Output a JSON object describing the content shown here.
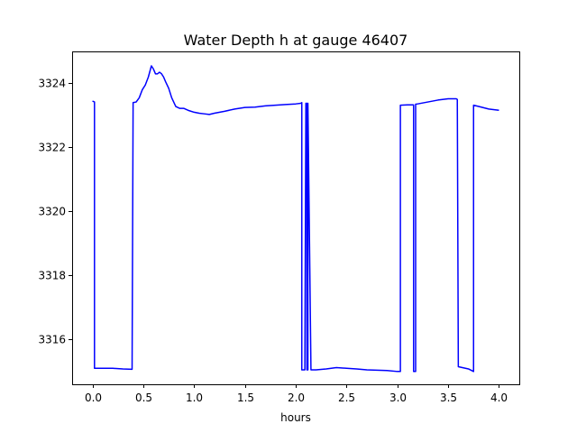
{
  "chart_data": {
    "type": "line",
    "title": "Water Depth h at gauge 46407",
    "xlabel": "hours",
    "ylabel": "",
    "xlim": [
      -0.2,
      4.2
    ],
    "ylim": [
      3314.6,
      3325.0
    ],
    "xticks": [
      0.0,
      0.5,
      1.0,
      1.5,
      2.0,
      2.5,
      3.0,
      3.5,
      4.0
    ],
    "xtick_labels": [
      "0.0",
      "0.5",
      "1.0",
      "1.5",
      "2.0",
      "2.5",
      "3.0",
      "3.5",
      "4.0"
    ],
    "yticks": [
      3316,
      3318,
      3320,
      3322,
      3324
    ],
    "ytick_labels": [
      "3316",
      "3318",
      "3320",
      "3322",
      "3324"
    ],
    "grid": false,
    "series": [
      {
        "color": "#0000ff",
        "x": [
          0.0,
          0.02,
          0.02,
          0.1,
          0.2,
          0.3,
          0.39,
          0.4,
          0.43,
          0.46,
          0.49,
          0.52,
          0.55,
          0.58,
          0.6,
          0.62,
          0.64,
          0.66,
          0.68,
          0.7,
          0.72,
          0.75,
          0.78,
          0.82,
          0.86,
          0.9,
          0.95,
          1.0,
          1.05,
          1.1,
          1.15,
          1.2,
          1.3,
          1.4,
          1.5,
          1.6,
          1.7,
          1.8,
          1.9,
          2.0,
          2.05,
          2.06,
          2.06,
          2.09,
          2.1,
          2.11,
          2.11,
          2.12,
          2.12,
          2.15,
          2.2,
          2.3,
          2.4,
          2.5,
          2.6,
          2.7,
          2.8,
          2.9,
          3.0,
          3.03,
          3.03,
          3.1,
          3.16,
          3.16,
          3.18,
          3.18,
          3.2,
          3.3,
          3.4,
          3.5,
          3.58,
          3.59,
          3.6,
          3.7,
          3.75,
          3.75,
          3.8,
          3.9,
          4.0
        ],
        "y": [
          3323.45,
          3323.42,
          3315.1,
          3315.1,
          3315.1,
          3315.08,
          3315.07,
          3323.4,
          3323.42,
          3323.55,
          3323.8,
          3323.95,
          3324.2,
          3324.55,
          3324.45,
          3324.3,
          3324.3,
          3324.35,
          3324.3,
          3324.2,
          3324.05,
          3323.85,
          3323.55,
          3323.28,
          3323.22,
          3323.22,
          3323.15,
          3323.1,
          3323.07,
          3323.05,
          3323.03,
          3323.07,
          3323.13,
          3323.2,
          3323.25,
          3323.26,
          3323.3,
          3323.32,
          3323.34,
          3323.36,
          3323.38,
          3323.4,
          3315.05,
          3315.05,
          3323.38,
          3323.38,
          3315.05,
          3315.05,
          3323.38,
          3315.05,
          3315.05,
          3315.08,
          3315.12,
          3315.1,
          3315.08,
          3315.05,
          3315.04,
          3315.03,
          3315.0,
          3315.0,
          3323.32,
          3323.33,
          3323.33,
          3315.0,
          3315.0,
          3323.35,
          3323.36,
          3323.42,
          3323.48,
          3323.52,
          3323.52,
          3323.5,
          3315.15,
          3315.08,
          3315.0,
          3323.32,
          3323.28,
          3323.2,
          3323.16
        ]
      }
    ]
  }
}
